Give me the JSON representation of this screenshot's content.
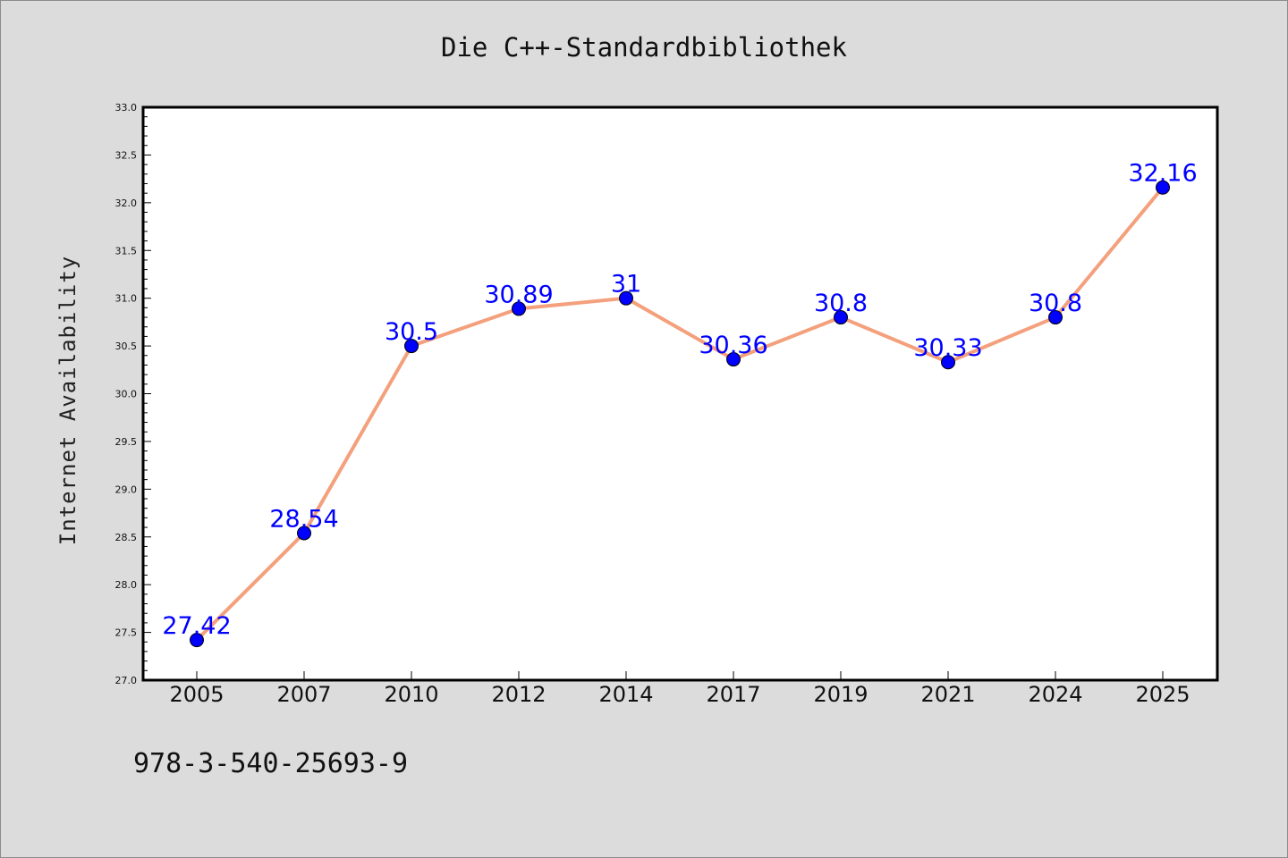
{
  "chart_data": {
    "type": "line",
    "title": "Die C++-Standardbibliothek",
    "xlabel": "",
    "ylabel": "Internet Availability",
    "categories": [
      "2005",
      "2007",
      "2010",
      "2012",
      "2014",
      "2017",
      "2019",
      "2021",
      "2024",
      "2025"
    ],
    "series": [
      {
        "values": [
          27.42,
          28.54,
          30.5,
          30.89,
          31,
          30.36,
          30.8,
          30.33,
          30.8,
          32.16
        ],
        "line_color": "#f4a07c",
        "marker_color": "#0000ff"
      }
    ],
    "data_labels": [
      "27.42",
      "28.54",
      "30.5",
      "30.89",
      "31",
      "30.36",
      "30.8",
      "30.33",
      "30.8",
      "32.16"
    ],
    "ylim": [
      27.0,
      33.0
    ],
    "yticks": [
      "27.0",
      "27.5",
      "28.0",
      "28.5",
      "29.0",
      "29.5",
      "30.0",
      "30.5",
      "31.0",
      "31.5",
      "32.0",
      "32.5",
      "33.0"
    ],
    "grid": false,
    "colors": {
      "page_background": "#dcdcdc",
      "plot_background": "#ffffff",
      "data_label": "#0000ff"
    }
  },
  "footer": {
    "isbn": "978-3-540-25693-9"
  }
}
